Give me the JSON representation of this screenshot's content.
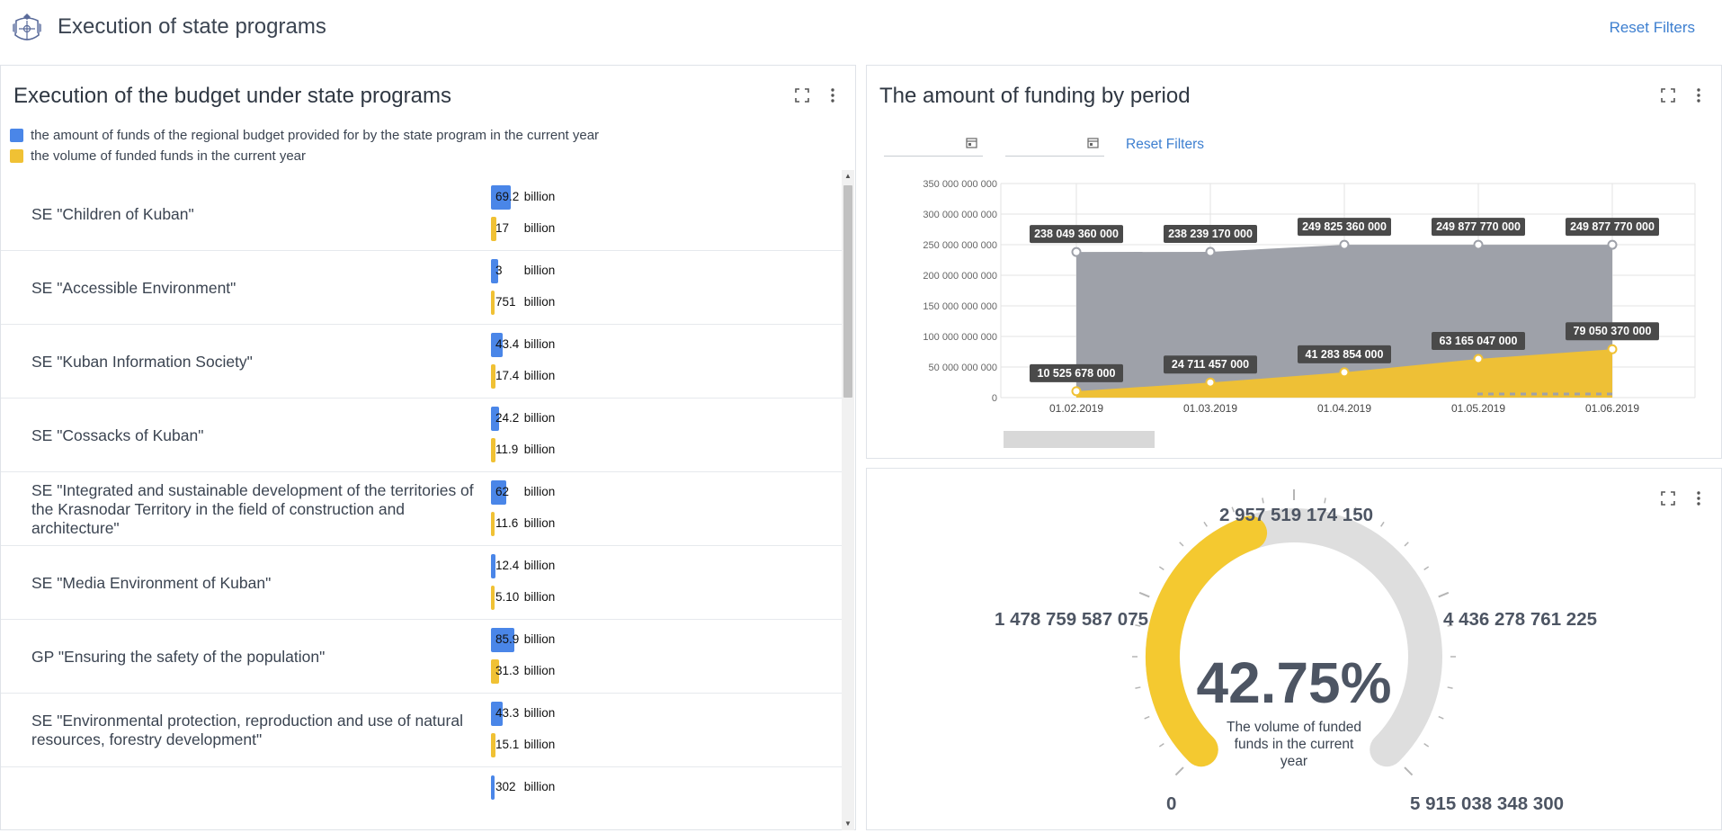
{
  "header": {
    "title": "Execution of state programs",
    "reset_filters": "Reset Filters"
  },
  "budget_panel": {
    "title": "Execution of the budget under state programs",
    "legend": [
      {
        "label": "the amount of funds of the regional budget provided for by the state program in the current year",
        "color": "#4a86e8"
      },
      {
        "label": "the volume of funded funds in the current year",
        "color": "#f0c134"
      }
    ],
    "unit": "billion",
    "rows": [
      {
        "label": "SE \"Children of Kuban\"",
        "planned": "69.2",
        "funded": "17"
      },
      {
        "label": "SE \"Accessible Environment\"",
        "planned": "3",
        "funded": "751"
      },
      {
        "label": "SE \"Kuban Information Society\"",
        "planned": "43.4",
        "funded": "17.4"
      },
      {
        "label": "SE \"Cossacks of Kuban\"",
        "planned": "24.2",
        "funded": "11.9"
      },
      {
        "label": "SE \"Integrated and sustainable development of the territories of the Krasnodar Territory in the field of construction and architecture\"",
        "planned": "62",
        "funded": "11.6"
      },
      {
        "label": "SE \"Media Environment of Kuban\"",
        "planned": "12.4",
        "funded": "5.10"
      },
      {
        "label": "GP \"Ensuring the safety of the population\"",
        "planned": "85.9",
        "funded": "31.3"
      },
      {
        "label": "SE \"Environmental protection, reproduction and use of natural resources, forestry development\"",
        "planned": "43.3",
        "funded": "15.1"
      },
      {
        "label": "",
        "planned": "302",
        "funded": ""
      }
    ]
  },
  "funding_panel": {
    "title": "The amount of funding by period",
    "date_from": "",
    "date_to": "",
    "reset_filters": "Reset Filters"
  },
  "chart_data": {
    "type": "area",
    "x": [
      "01.02.2019",
      "01.03.2019",
      "01.04.2019",
      "01.05.2019",
      "01.06.2019"
    ],
    "ylim": [
      0,
      350000000000
    ],
    "yticks": [
      0,
      50000000000,
      100000000000,
      150000000000,
      200000000000,
      250000000000,
      300000000000,
      350000000000
    ],
    "ytick_labels": [
      "0",
      "50 000 000 000",
      "100 000 000 000",
      "150 000 000 000",
      "200 000 000 000",
      "250 000 000 000",
      "300 000 000 000",
      "350 000 000 000"
    ],
    "grid": true,
    "series": [
      {
        "values": [
          238049360000,
          238239170000,
          249825360000,
          249877770000,
          249877770000
        ],
        "labels": [
          "238 049 360 000",
          "238 239 170 000",
          "249 825 360 000",
          "249 877 770 000",
          "249 877 770 000"
        ],
        "color": "#9ea1a9"
      },
      {
        "values": [
          10525678000,
          24711457000,
          41283854000,
          63165047000,
          79050370000
        ],
        "labels": [
          "10 525 678 000",
          "24 711 457 000",
          "41 283 854 000",
          "63 165 047 000",
          "79 050 370 000"
        ],
        "color": "#f0c134"
      }
    ]
  },
  "gauge": {
    "value_text": "42.75%",
    "value_fraction": 0.4275,
    "caption": "The volume of funded funds in the current year",
    "scale_labels": [
      "0",
      "1 478 759 587 075",
      "2 957 519 174 150",
      "4 436 278 761 225",
      "5 915 038 348 300"
    ],
    "fill_color": "#f4c930",
    "track_color": "#dedede"
  },
  "colors": {
    "accent": "#3d7fd0",
    "planned": "#4a86e8",
    "funded": "#f0c134"
  }
}
